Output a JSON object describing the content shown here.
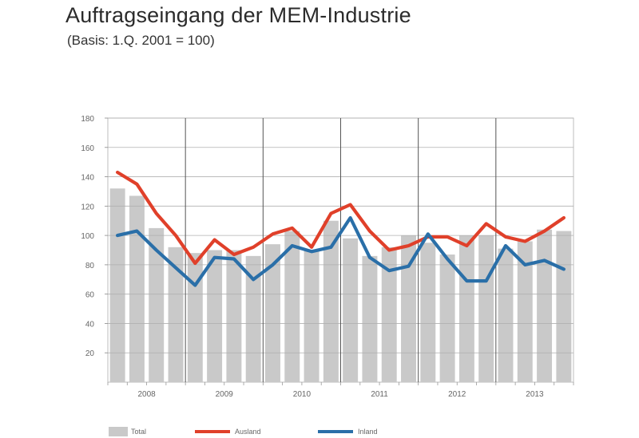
{
  "title": "Auftragseingang der MEM-Industrie",
  "subtitle": "(Basis: 1.Q. 2001 = 100)",
  "chart_data": {
    "type": "bar",
    "title": "Auftragseingang der MEM-Industrie",
    "subtitle": "(Basis: 1.Q. 2001 = 100)",
    "categories": [
      "2008-Q1",
      "2008-Q2",
      "2008-Q3",
      "2008-Q4",
      "2009-Q1",
      "2009-Q2",
      "2009-Q3",
      "2009-Q4",
      "2010-Q1",
      "2010-Q2",
      "2010-Q3",
      "2010-Q4",
      "2011-Q1",
      "2011-Q2",
      "2011-Q3",
      "2011-Q4",
      "2012-Q1",
      "2012-Q2",
      "2012-Q3",
      "2012-Q4",
      "2013-Q1",
      "2013-Q2",
      "2013-Q3",
      "2013-Q4"
    ],
    "year_labels": [
      "2008",
      "2009",
      "2010",
      "2011",
      "2012",
      "2013"
    ],
    "y_ticks": [
      "180",
      "160",
      "140",
      "120",
      "100",
      "80",
      "60",
      "40",
      "20"
    ],
    "ylim": [
      0,
      180
    ],
    "grid": true,
    "legend_position": "bottom",
    "series": [
      {
        "name": "Total",
        "kind": "bar",
        "color": "#c9c9c9",
        "values": [
          132,
          127,
          105,
          92,
          88,
          90,
          90,
          86,
          94,
          103,
          90,
          110,
          98,
          86,
          92,
          100,
          95,
          87,
          100,
          100,
          91,
          96,
          104,
          103
        ]
      },
      {
        "name": "Ausland",
        "kind": "line",
        "color": "#e0402a",
        "values": [
          143,
          135,
          115,
          100,
          81,
          97,
          87,
          92,
          101,
          105,
          92,
          115,
          121,
          103,
          90,
          93,
          99,
          99,
          93,
          108,
          99,
          96,
          103,
          112
        ]
      },
      {
        "name": "Inland",
        "kind": "line",
        "color": "#2a6fa8",
        "values": [
          100,
          103,
          90,
          78,
          66,
          85,
          84,
          70,
          80,
          93,
          89,
          92,
          112,
          85,
          76,
          79,
          101,
          84,
          69,
          69,
          93,
          80,
          83,
          77
        ]
      }
    ]
  }
}
